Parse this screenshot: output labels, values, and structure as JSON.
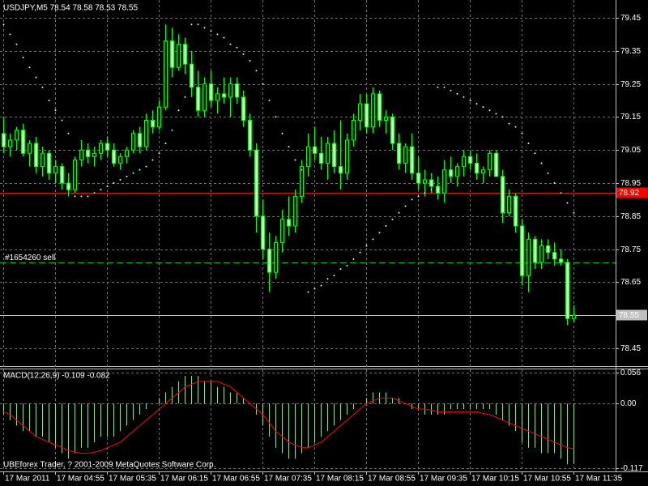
{
  "chart_data": [
    {
      "type": "candlestick",
      "title": "USDJPY,M5  78.54 78.58 78.53 78.55",
      "categories": [
        "17 Mar 2011",
        null,
        null,
        null,
        null,
        null,
        null,
        null,
        "17 Mar 04:55",
        null,
        null,
        null,
        null,
        null,
        null,
        null,
        "17 Mar 05:35",
        null,
        null,
        null,
        null,
        null,
        null,
        null,
        "17 Mar 06:15",
        null,
        null,
        null,
        null,
        null,
        null,
        null,
        "17 Mar 06:55",
        null,
        null,
        null,
        null,
        null,
        null,
        null,
        "17 Mar 07:35",
        null,
        null,
        null,
        null,
        null,
        null,
        null,
        "17 Mar 08:15",
        null,
        null,
        null,
        null,
        null,
        null,
        null,
        "17 Mar 08:55",
        null,
        null,
        null,
        null,
        null,
        null,
        null,
        "17 Mar 09:35",
        null,
        null,
        null,
        null,
        null,
        null,
        null,
        "17 Mar 10:15",
        null,
        null,
        null,
        null,
        null,
        null,
        null,
        "17 Mar 10:55",
        null,
        null,
        null,
        null,
        null,
        null,
        null,
        "17 Mar 11:35"
      ],
      "open": [
        79.1,
        79.06,
        79.08,
        79.11,
        79.04,
        79.07,
        79.0,
        79.04,
        78.98,
        79.0,
        78.95,
        78.93,
        79.02,
        79.05,
        79.03,
        79.04,
        79.07,
        79.05,
        79.01,
        79.03,
        79.05,
        79.1,
        79.06,
        79.14,
        79.12,
        79.18,
        79.38,
        79.3,
        79.37,
        79.31,
        79.24,
        79.17,
        79.25,
        79.2,
        79.22,
        79.21,
        79.25,
        79.21,
        79.14,
        79.05,
        78.85,
        78.75,
        78.68,
        78.77,
        78.84,
        78.82,
        78.91,
        79.0,
        79.06,
        79.04,
        79.01,
        79.07,
        79.0,
        78.98,
        79.08,
        79.14,
        79.19,
        79.12,
        79.22,
        79.14,
        79.15,
        79.07,
        79.01,
        79.06,
        78.98,
        78.95,
        78.96,
        78.94,
        78.92,
        78.99,
        78.97,
        79.0,
        79.03,
        79.01,
        78.98,
        78.99,
        79.04,
        78.97,
        78.86,
        78.91,
        78.82,
        78.67,
        78.78,
        78.71,
        78.76,
        78.74,
        78.72,
        78.71,
        78.54
      ],
      "high": [
        79.15,
        79.1,
        79.12,
        79.13,
        79.08,
        79.09,
        79.06,
        79.05,
        79.02,
        79.01,
        78.98,
        79.03,
        79.08,
        79.07,
        79.06,
        79.08,
        79.09,
        79.07,
        79.04,
        79.06,
        79.11,
        79.12,
        79.16,
        79.17,
        79.2,
        79.43,
        79.42,
        79.4,
        79.39,
        79.35,
        79.29,
        79.27,
        79.29,
        79.24,
        79.27,
        79.27,
        79.27,
        79.23,
        79.16,
        79.07,
        78.9,
        78.8,
        78.79,
        78.87,
        78.91,
        78.93,
        79.02,
        79.1,
        79.12,
        79.09,
        79.09,
        79.11,
        79.14,
        79.1,
        79.16,
        79.22,
        79.22,
        79.24,
        79.23,
        79.17,
        79.16,
        79.1,
        79.07,
        79.1,
        79.03,
        78.99,
        78.98,
        78.97,
        79.02,
        79.03,
        79.01,
        79.05,
        79.05,
        79.04,
        79.0,
        79.05,
        79.05,
        78.99,
        78.93,
        78.92,
        78.84,
        78.8,
        78.79,
        78.78,
        78.78,
        78.77,
        78.75,
        78.72,
        78.58
      ],
      "low": [
        79.04,
        79.03,
        79.05,
        79.03,
        79.0,
        78.98,
        78.97,
        78.96,
        78.95,
        78.93,
        78.91,
        78.92,
        79.0,
        79.01,
        79.0,
        79.02,
        79.03,
        79.0,
        78.99,
        79.01,
        79.04,
        79.04,
        79.05,
        79.1,
        79.11,
        79.17,
        79.27,
        79.29,
        79.28,
        79.21,
        79.15,
        79.15,
        79.18,
        79.16,
        79.19,
        79.15,
        79.19,
        79.12,
        79.03,
        78.8,
        78.72,
        78.62,
        78.66,
        78.74,
        78.79,
        78.8,
        78.89,
        78.97,
        79.02,
        78.99,
        78.96,
        78.98,
        78.93,
        78.96,
        79.06,
        79.11,
        79.1,
        79.1,
        79.12,
        79.1,
        79.05,
        78.99,
        78.98,
        78.96,
        78.93,
        78.91,
        78.92,
        78.9,
        78.89,
        78.95,
        78.94,
        78.97,
        78.99,
        78.96,
        78.95,
        78.97,
        78.97,
        78.83,
        78.85,
        78.8,
        78.64,
        78.62,
        78.69,
        78.69,
        78.72,
        78.7,
        78.7,
        78.52,
        78.53
      ],
      "close": [
        79.06,
        79.08,
        79.11,
        79.04,
        79.07,
        79.0,
        79.04,
        78.98,
        79.0,
        78.95,
        78.93,
        79.02,
        79.05,
        79.03,
        79.04,
        79.07,
        79.05,
        79.01,
        79.03,
        79.05,
        79.1,
        79.06,
        79.14,
        79.12,
        79.18,
        79.38,
        79.3,
        79.37,
        79.31,
        79.24,
        79.17,
        79.25,
        79.2,
        79.22,
        79.21,
        79.25,
        79.21,
        79.14,
        79.05,
        78.85,
        78.75,
        78.68,
        78.77,
        78.84,
        78.82,
        78.91,
        79.0,
        79.06,
        79.04,
        79.01,
        79.07,
        79.0,
        78.98,
        79.08,
        79.14,
        79.19,
        79.12,
        79.22,
        79.14,
        79.15,
        79.07,
        79.01,
        79.06,
        78.98,
        78.95,
        78.96,
        78.94,
        78.92,
        78.99,
        78.97,
        79.0,
        79.03,
        79.01,
        78.98,
        78.99,
        79.04,
        78.97,
        78.86,
        78.91,
        78.82,
        78.67,
        78.78,
        78.71,
        78.76,
        78.74,
        78.72,
        78.71,
        78.54,
        78.55
      ],
      "up_color": "#000000",
      "down_color": "#ffffff",
      "wick_color": "#00ff00",
      "overlay": {
        "color": "#c8ffff",
        "values": [
          79.43,
          79.4,
          79.37,
          79.33,
          79.3,
          79.27,
          79.24,
          79.2,
          79.17,
          79.14,
          79.1,
          78.91,
          78.91,
          78.91,
          78.92,
          78.93,
          78.94,
          78.95,
          78.96,
          78.97,
          78.98,
          78.99,
          79.0,
          79.02,
          79.04,
          79.07,
          79.11,
          79.17,
          79.21,
          79.43,
          79.43,
          79.42,
          79.41,
          79.4,
          79.39,
          79.37,
          79.36,
          79.34,
          79.32,
          79.29,
          79.25,
          79.2,
          79.15,
          79.1,
          79.06,
          79.02,
          78.99,
          78.62,
          78.63,
          78.64,
          78.66,
          78.67,
          78.69,
          78.7,
          78.72,
          78.74,
          78.76,
          78.78,
          78.8,
          78.82,
          78.84,
          78.86,
          78.88,
          78.9,
          78.91,
          78.92,
          78.93,
          79.24,
          79.24,
          79.23,
          79.22,
          79.21,
          79.2,
          79.19,
          79.18,
          79.17,
          79.16,
          79.15,
          79.13,
          79.12,
          79.1,
          79.07,
          79.04,
          79.01,
          78.98,
          78.95,
          78.92,
          78.89,
          78.86
        ]
      },
      "price_lines": [
        {
          "value": 78.92,
          "color": "#ff0000",
          "text_color": "#ffffff"
        },
        {
          "value": 78.71,
          "label": "#1654260 sell",
          "color": "#00c000",
          "style": "dashed"
        },
        {
          "value": 78.55,
          "color": "#c0c0c0",
          "text_color": "#000000"
        }
      ],
      "ylim": [
        78.396,
        79.504
      ],
      "yticks": [
        79.45,
        79.35,
        79.25,
        79.15,
        79.05,
        78.95,
        78.85,
        78.75,
        78.65,
        78.45
      ],
      "grid": true
    },
    {
      "type": "macd",
      "title": "MACD(12,26,9) -0.109 -0.082",
      "series": [
        {
          "type": "bar",
          "color": "#8fdc8f",
          "values": [
            -0.02,
            -0.03,
            -0.04,
            -0.05,
            -0.05,
            -0.06,
            -0.06,
            -0.07,
            -0.08,
            -0.09,
            -0.1,
            -0.09,
            -0.08,
            -0.08,
            -0.07,
            -0.06,
            -0.06,
            -0.06,
            -0.05,
            -0.04,
            -0.03,
            -0.02,
            -0.01,
            0.0,
            0.01,
            0.02,
            0.03,
            0.04,
            0.05,
            0.05,
            0.05,
            0.04,
            0.04,
            0.03,
            0.03,
            0.02,
            0.02,
            0.01,
            0.0,
            -0.02,
            -0.04,
            -0.06,
            -0.08,
            -0.09,
            -0.1,
            -0.1,
            -0.09,
            -0.08,
            -0.07,
            -0.06,
            -0.05,
            -0.04,
            -0.03,
            -0.02,
            -0.01,
            0.0,
            0.01,
            0.02,
            0.02,
            0.02,
            0.01,
            0.01,
            0.0,
            -0.01,
            -0.01,
            -0.02,
            -0.02,
            -0.02,
            -0.02,
            -0.01,
            -0.01,
            -0.01,
            -0.01,
            -0.01,
            -0.01,
            -0.01,
            -0.02,
            -0.03,
            -0.04,
            -0.05,
            -0.07,
            -0.08,
            -0.08,
            -0.09,
            -0.09,
            -0.09,
            -0.1,
            -0.11,
            -0.109
          ]
        },
        {
          "type": "line",
          "color": "#ff0000",
          "values": [
            -0.015,
            -0.02,
            -0.03,
            -0.04,
            -0.05,
            -0.06,
            -0.065,
            -0.07,
            -0.075,
            -0.08,
            -0.085,
            -0.088,
            -0.09,
            -0.09,
            -0.088,
            -0.085,
            -0.08,
            -0.075,
            -0.07,
            -0.06,
            -0.05,
            -0.04,
            -0.03,
            -0.02,
            -0.01,
            0.0,
            0.01,
            0.02,
            0.03,
            0.035,
            0.04,
            0.04,
            0.04,
            0.04,
            0.035,
            0.03,
            0.02,
            0.01,
            0.0,
            -0.01,
            -0.02,
            -0.035,
            -0.05,
            -0.06,
            -0.07,
            -0.075,
            -0.08,
            -0.08,
            -0.075,
            -0.07,
            -0.06,
            -0.05,
            -0.04,
            -0.03,
            -0.02,
            -0.01,
            0.0,
            0.005,
            0.01,
            0.01,
            0.01,
            0.005,
            0.0,
            -0.005,
            -0.01,
            -0.01,
            -0.012,
            -0.015,
            -0.015,
            -0.015,
            -0.015,
            -0.015,
            -0.015,
            -0.015,
            -0.018,
            -0.02,
            -0.025,
            -0.03,
            -0.035,
            -0.04,
            -0.045,
            -0.05,
            -0.055,
            -0.06,
            -0.065,
            -0.07,
            -0.075,
            -0.08,
            -0.082
          ]
        }
      ],
      "ylim": [
        -0.117,
        0.056
      ],
      "yticks": [
        0.056,
        {
          "value": 0,
          "label": "0.00"
        },
        -0.117
      ],
      "grid": true
    }
  ],
  "footer": "UBEforex Trader, ? 2001-2009 MetaQuotes Software Corp."
}
